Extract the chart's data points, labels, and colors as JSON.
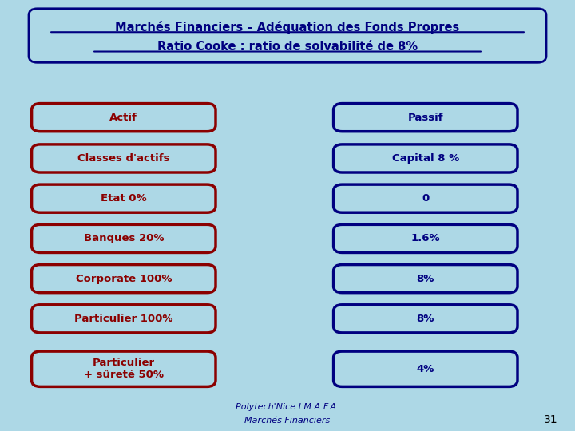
{
  "title_line1": "Marchés Financiers – Adéquation des Fonds Propres",
  "title_line2": "Ratio Cooke : ratio de solvabilité de 8%",
  "background_color": "#ADD8E6",
  "title_box_color": "#ADD8E6",
  "title_border_color": "#000080",
  "title_text_color": "#000080",
  "left_labels": [
    "Actif",
    "Classes d'actifs",
    "Etat 0%",
    "Banques 20%",
    "Corporate 100%",
    "Particulier 100%",
    "Particulier\n+ sûreté 50%"
  ],
  "right_labels": [
    "Passif",
    "Capital 8 %",
    "0",
    "1.6%",
    "8%",
    "8%",
    "4%"
  ],
  "left_box_color": "#ADD8E6",
  "left_border_color": "#8B0000",
  "left_text_color": "#8B0000",
  "right_box_color": "#ADD8E6",
  "right_border_color": "#000080",
  "right_text_color": "#000080",
  "footer_line1": "Polytech'Nice I.M.A.F.A.",
  "footer_line2": "Marchés Financiers",
  "footer_color": "#000080",
  "page_number": "31",
  "page_number_color": "#000000"
}
